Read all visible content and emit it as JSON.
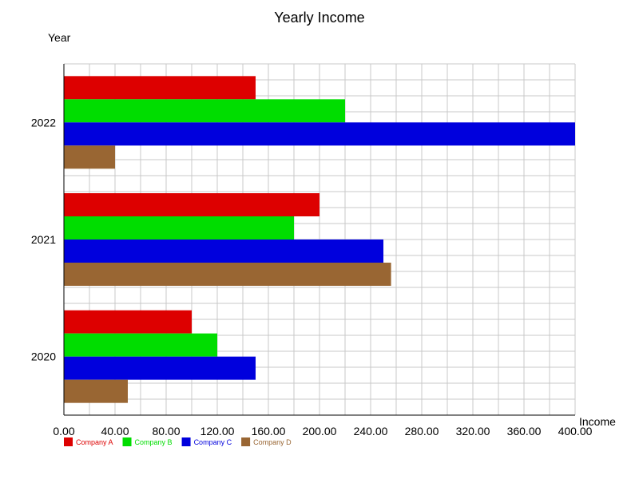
{
  "chart_data": {
    "type": "bar",
    "orientation": "horizontal",
    "title": "Yearly Income",
    "xlabel": "Income",
    "ylabel": "Year",
    "categories": [
      "2020",
      "2021",
      "2022"
    ],
    "series": [
      {
        "name": "Company A",
        "color": "#dd0000",
        "values": [
          100,
          200,
          150
        ]
      },
      {
        "name": "Company B",
        "color": "#00dd00",
        "values": [
          120,
          180,
          220
        ]
      },
      {
        "name": "Company C",
        "color": "#0000dd",
        "values": [
          150,
          250,
          400
        ]
      },
      {
        "name": "Company D",
        "color": "#996633",
        "values": [
          50,
          256,
          40
        ]
      }
    ],
    "xlim": [
      0,
      400
    ],
    "x_major_ticks": [
      "0.00",
      "40.00",
      "80.00",
      "120.00",
      "160.00",
      "200.00",
      "240.00",
      "280.00",
      "320.00",
      "360.00",
      "400.00"
    ],
    "x_grid_step": 20,
    "grid": true,
    "legend_position": "bottom-left"
  }
}
